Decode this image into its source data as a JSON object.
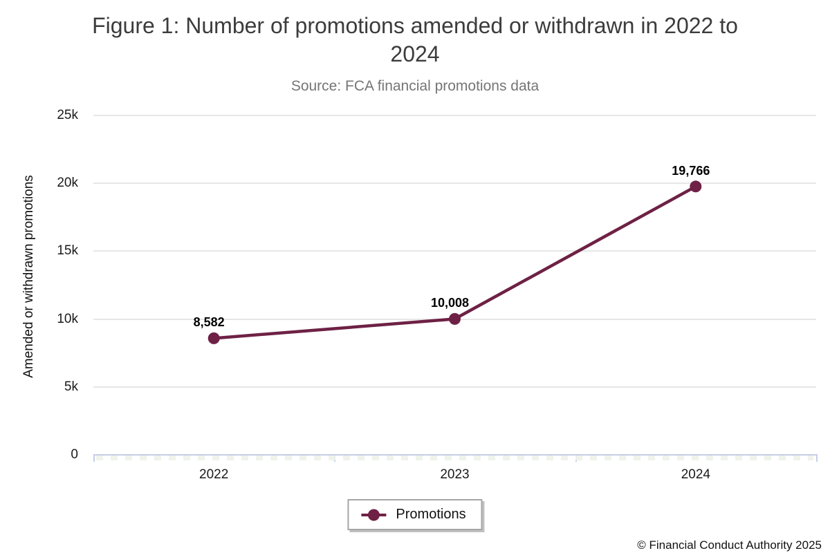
{
  "chart_data": {
    "type": "line",
    "title": "Figure 1: Number of promotions amended or withdrawn in 2022 to 2024",
    "subtitle": "Source: FCA financial promotions data",
    "xlabel": "",
    "ylabel": "Amended or withdrawn promotions",
    "categories": [
      "2022",
      "2023",
      "2024"
    ],
    "series": [
      {
        "name": "Promotions",
        "color": "#6e2145",
        "values": [
          8582,
          10008,
          19766
        ],
        "labels": [
          "8,582",
          "10,008",
          "19,766"
        ]
      }
    ],
    "ylim": [
      0,
      25000
    ],
    "yticks": [
      {
        "label": "25k",
        "value": 25000
      },
      {
        "label": "20k",
        "value": 20000
      },
      {
        "label": "15k",
        "value": 15000
      },
      {
        "label": "10k",
        "value": 10000
      },
      {
        "label": "5k",
        "value": 5000
      },
      {
        "label": "0",
        "value": 0
      }
    ],
    "grid": "horizontal",
    "legend_position": "bottom"
  },
  "legend": {
    "items": [
      {
        "label": "Promotions",
        "color": "#6e2145"
      }
    ]
  },
  "footer": {
    "copyright": "© Financial Conduct Authority 2025"
  },
  "colors": {
    "series": "#6e2145",
    "gridline": "#e6e6e6",
    "axis_line": "#c6cde6",
    "title_text": "#3c3c3c",
    "subtitle_text": "#757575"
  }
}
